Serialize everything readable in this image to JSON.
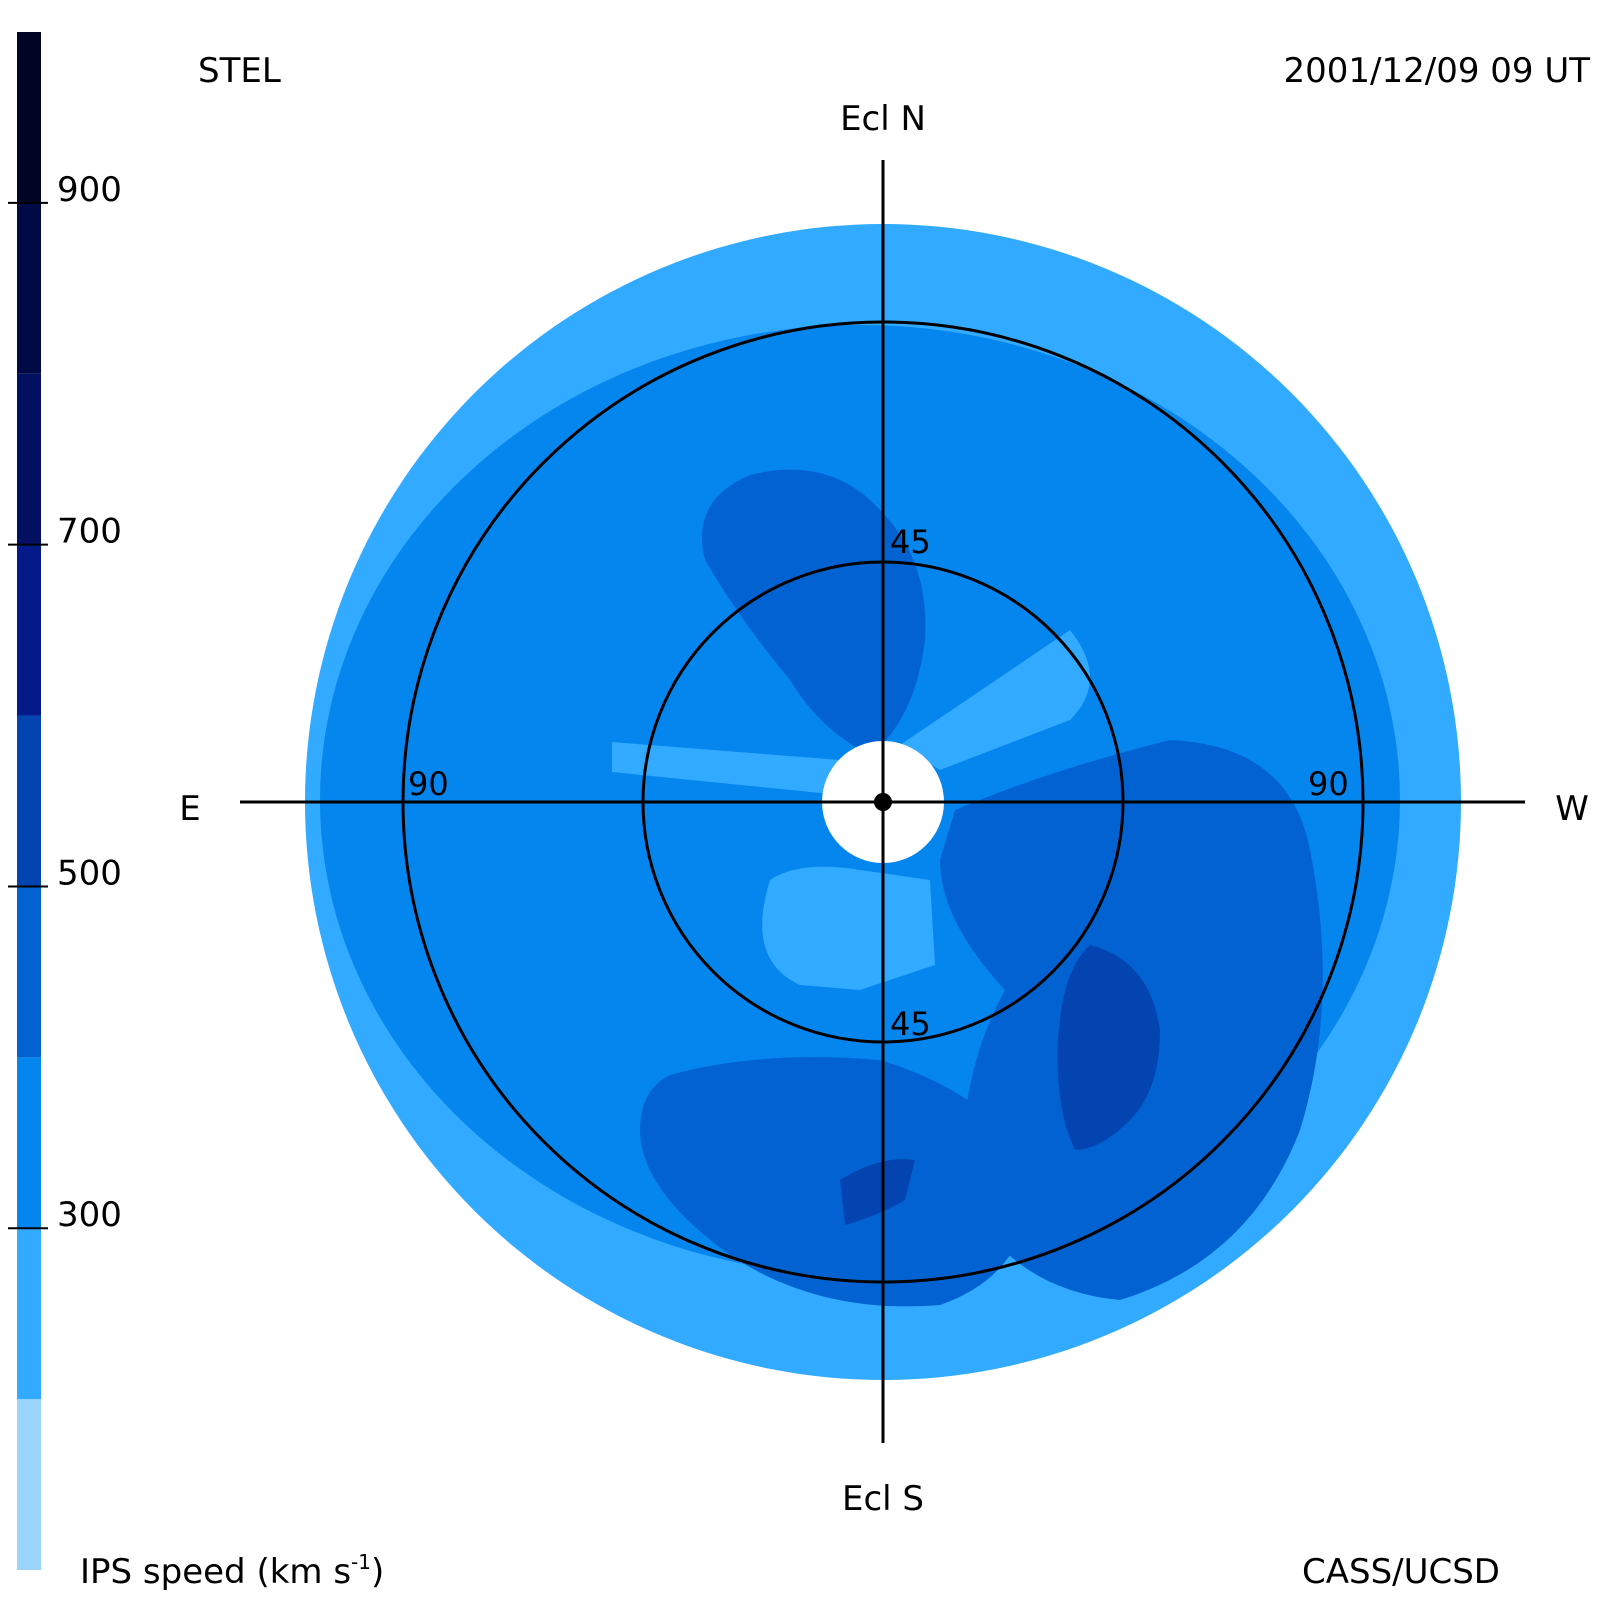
{
  "header": {
    "observatory": "STEL",
    "timestamp": "2001/12/09 09 UT",
    "credit": "CASS/UCSD"
  },
  "compass": {
    "north": "Ecl N",
    "south": "Ecl S",
    "east": "E",
    "west": "W"
  },
  "colorbar": {
    "title_main": "IPS speed (km s",
    "title_exp": "-1",
    "title_close": ")",
    "min": 100,
    "max": 1000,
    "tick_values": [
      300,
      500,
      700,
      900
    ],
    "tick_labels": [
      "300",
      "500",
      "700",
      "900"
    ],
    "bands": [
      {
        "from": 100,
        "to": 200,
        "color": "#9ad4fb"
      },
      {
        "from": 200,
        "to": 300,
        "color": "#31aaff"
      },
      {
        "from": 300,
        "to": 400,
        "color": "#0585ee"
      },
      {
        "from": 400,
        "to": 500,
        "color": "#0362d1"
      },
      {
        "from": 500,
        "to": 600,
        "color": "#0444b1"
      },
      {
        "from": 600,
        "to": 700,
        "color": "#031a88"
      },
      {
        "from": 700,
        "to": 800,
        "color": "#030f61"
      },
      {
        "from": 800,
        "to": 900,
        "color": "#020a45"
      },
      {
        "from": 900,
        "to": 1000,
        "color": "#010524"
      }
    ]
  },
  "chart_data": {
    "type": "heatmap",
    "projection": "polar sky map centered on Sun (elongation)",
    "quantity": "IPS speed (km s-1)",
    "elongation_rings_deg": [
      45,
      90
    ],
    "ring_labels": [
      "45",
      "45",
      "90",
      "90"
    ],
    "max_elongation_deg": 108,
    "regions": [
      {
        "description": "outer annulus",
        "speed_km_s": 250
      },
      {
        "description": "interior background",
        "speed_km_s": 350
      },
      {
        "description": "inner light streaks near Sun",
        "speed_km_s": 250
      },
      {
        "description": "upper-left lobe",
        "speed_km_s": 450
      },
      {
        "description": "right / lower-right lobe",
        "speed_km_s": 450
      },
      {
        "description": "bottom lobe",
        "speed_km_s": 450
      },
      {
        "description": "lower-right core",
        "speed_km_s": 550
      },
      {
        "description": "bottom core",
        "speed_km_s": 550
      }
    ]
  }
}
